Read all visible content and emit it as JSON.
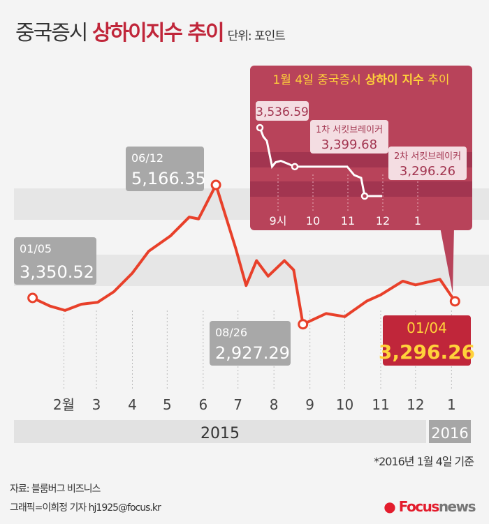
{
  "header": {
    "title_a": "중국증시",
    "title_b": "상하이지수 추이",
    "unit": "단위: 포인트"
  },
  "chart_data": [
    {
      "type": "line",
      "title": "",
      "xlabel": "",
      "ylabel": "",
      "x_ticks": [
        "2월",
        "3",
        "4",
        "5",
        "6",
        "7",
        "8",
        "9",
        "10",
        "11",
        "12",
        "1"
      ],
      "years": [
        "2015",
        "2016"
      ],
      "x": [
        "2015-01-05",
        "2015-01-20",
        "2015-02-02",
        "2015-02-16",
        "2015-03-02",
        "2015-03-16",
        "2015-04-01",
        "2015-04-15",
        "2015-05-04",
        "2015-05-20",
        "2015-05-28",
        "2015-06-12",
        "2015-06-29",
        "2015-07-08",
        "2015-07-17",
        "2015-07-27",
        "2015-08-10",
        "2015-08-18",
        "2015-08-26",
        "2015-09-15",
        "2015-10-01",
        "2015-10-20",
        "2015-11-01",
        "2015-11-20",
        "2015-12-01",
        "2015-12-22",
        "2016-01-04"
      ],
      "values": [
        3350.52,
        3220,
        3150,
        3250,
        3280,
        3450,
        3750,
        4100,
        4350,
        4650,
        4620,
        5166.35,
        4150,
        3550,
        3950,
        3700,
        3950,
        3800,
        2927.29,
        3100,
        3050,
        3300,
        3400,
        3620,
        3560,
        3650,
        3296.26
      ],
      "annotations": [
        {
          "date": "01/05",
          "value": "3,350.52"
        },
        {
          "date": "06/12",
          "value": "5,166.35"
        },
        {
          "date": "08/26",
          "value": "2,927.29"
        },
        {
          "date": "01/04",
          "value": "3,296.26"
        }
      ],
      "color": "#e8402a"
    },
    {
      "type": "line",
      "title": "1월 4일 중국증시 상하이 지수 추이",
      "title_a": "1월 4일 중국증시",
      "title_b": "상하이 지수",
      "title_c": "추이",
      "x_ticks": [
        "9시",
        "10",
        "11",
        "12",
        "1"
      ],
      "x": [
        9.5,
        9.6,
        9.7,
        9.85,
        9.95,
        10.1,
        10.3,
        10.5,
        10.7,
        11.0,
        11.5,
        12.0,
        12.2,
        12.4,
        12.5,
        13.0
      ],
      "values": [
        3536.59,
        3505,
        3490,
        3400,
        3415,
        3420,
        3410,
        3399.68,
        3399.68,
        3399.68,
        3399.68,
        3399.68,
        3370,
        3360,
        3296.26,
        3296.26
      ],
      "annotations": [
        {
          "label": "",
          "value": "3,536.59"
        },
        {
          "label": "1차 서킷브레이커",
          "value": "3,399.68"
        },
        {
          "label": "2차 서킷브레이커",
          "value": "3,296.26"
        }
      ]
    }
  ],
  "footer": {
    "note": "*2016년 1월 4일 기준",
    "source": "자료: 블룸버그 비즈니스",
    "credit": "그래픽=이희정 기자 hj1925@focus.kr",
    "logo_a": "Focus",
    "logo_b": "news"
  }
}
